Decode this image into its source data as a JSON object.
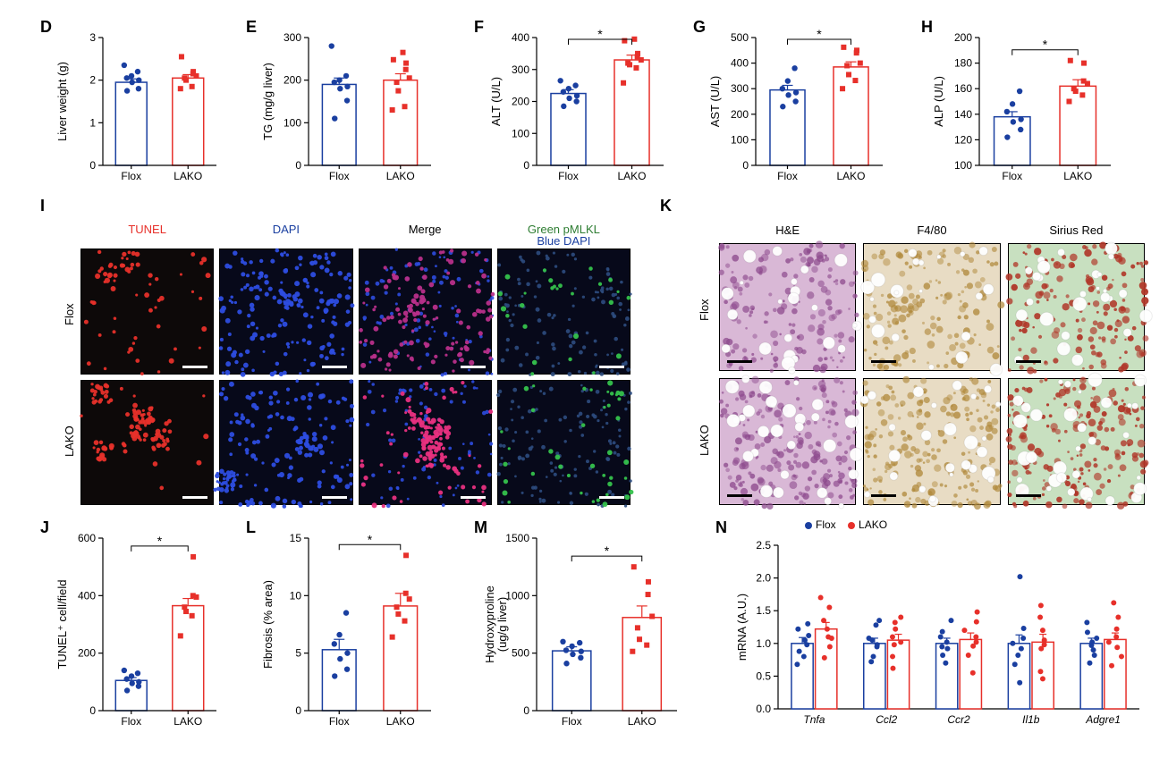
{
  "colors": {
    "flox": "#1a3fa0",
    "lako": "#e7302a",
    "black": "#000000"
  },
  "panels": {
    "D": {
      "label": "D",
      "ylabel": "Liver weight (g)",
      "ymin": 0,
      "ymax": 3,
      "ytick_step": 1,
      "bar_width": 0.55,
      "categories": [
        "Flox",
        "LAKO"
      ],
      "bars": [
        {
          "group": "Flox",
          "mean": 1.95,
          "sem": 0.08,
          "color": "#1a3fa0",
          "shape": "circle",
          "points": [
            1.75,
            1.8,
            1.95,
            2.0,
            2.05,
            2.1,
            2.2,
            2.35
          ]
        },
        {
          "group": "LAKO",
          "mean": 2.05,
          "sem": 0.08,
          "color": "#e7302a",
          "shape": "square",
          "points": [
            1.8,
            1.85,
            2.0,
            2.05,
            2.1,
            2.15,
            2.2,
            2.55
          ]
        }
      ],
      "significant": false
    },
    "E": {
      "label": "E",
      "ylabel": "TG (mg/g liver)",
      "ymin": 0,
      "ymax": 300,
      "ytick_step": 100,
      "bar_width": 0.55,
      "categories": [
        "Flox",
        "LAKO"
      ],
      "bars": [
        {
          "group": "Flox",
          "mean": 190,
          "sem": 15,
          "color": "#1a3fa0",
          "shape": "circle",
          "points": [
            110,
            152,
            180,
            185,
            195,
            200,
            210,
            280
          ]
        },
        {
          "group": "LAKO",
          "mean": 200,
          "sem": 15,
          "color": "#e7302a",
          "shape": "square",
          "points": [
            130,
            138,
            175,
            195,
            205,
            225,
            240,
            248,
            265
          ]
        }
      ],
      "significant": false
    },
    "F": {
      "label": "F",
      "ylabel": "ALT (U/L)",
      "ymin": 0,
      "ymax": 400,
      "ytick_step": 100,
      "bar_width": 0.55,
      "categories": [
        "Flox",
        "LAKO"
      ],
      "bars": [
        {
          "group": "Flox",
          "mean": 225,
          "sem": 12,
          "color": "#1a3fa0",
          "shape": "circle",
          "points": [
            185,
            200,
            210,
            218,
            230,
            240,
            250,
            265
          ]
        },
        {
          "group": "LAKO",
          "mean": 330,
          "sem": 15,
          "color": "#e7302a",
          "shape": "square",
          "points": [
            258,
            305,
            315,
            320,
            330,
            340,
            350,
            390,
            395
          ]
        }
      ],
      "significant": true
    },
    "G": {
      "label": "G",
      "ylabel": "AST (U/L)",
      "ymin": 0,
      "ymax": 500,
      "ytick_step": 100,
      "bar_width": 0.55,
      "categories": [
        "Flox",
        "LAKO"
      ],
      "bars": [
        {
          "group": "Flox",
          "mean": 295,
          "sem": 18,
          "color": "#1a3fa0",
          "shape": "circle",
          "points": [
            230,
            250,
            275,
            285,
            300,
            330,
            380
          ]
        },
        {
          "group": "LAKO",
          "mean": 385,
          "sem": 20,
          "color": "#e7302a",
          "shape": "square",
          "points": [
            300,
            332,
            355,
            390,
            400,
            440,
            450,
            462
          ]
        }
      ],
      "significant": true
    },
    "H": {
      "label": "H",
      "ylabel": "ALP (U/L)",
      "ymin": 100,
      "ymax": 200,
      "ytick_step": 20,
      "bar_width": 0.55,
      "categories": [
        "Flox",
        "LAKO"
      ],
      "bars": [
        {
          "group": "Flox",
          "mean": 138,
          "sem": 4,
          "color": "#1a3fa0",
          "shape": "circle",
          "points": [
            122,
            128,
            134,
            136,
            142,
            148,
            158
          ]
        },
        {
          "group": "LAKO",
          "mean": 162,
          "sem": 5,
          "color": "#e7302a",
          "shape": "square",
          "points": [
            150,
            155,
            158,
            160,
            164,
            166,
            180,
            182
          ]
        }
      ],
      "significant": true
    },
    "J": {
      "label": "J",
      "ylabel": "TUNEL⁺ cell/field",
      "ymin": 0,
      "ymax": 600,
      "ytick_step": 200,
      "bar_width": 0.55,
      "categories": [
        "Flox",
        "LAKO"
      ],
      "bars": [
        {
          "group": "Flox",
          "mean": 105,
          "sem": 10,
          "color": "#1a3fa0",
          "shape": "circle",
          "points": [
            70,
            85,
            95,
            100,
            110,
            120,
            130,
            140
          ]
        },
        {
          "group": "LAKO",
          "mean": 365,
          "sem": 25,
          "color": "#e7302a",
          "shape": "square",
          "points": [
            260,
            330,
            345,
            360,
            395,
            400,
            535
          ]
        }
      ],
      "significant": true
    },
    "L": {
      "label": "L",
      "ylabel": "Fibrosis (% area)",
      "ymin": 0,
      "ymax": 15,
      "ytick_step": 5,
      "bar_width": 0.55,
      "categories": [
        "Flox",
        "LAKO"
      ],
      "bars": [
        {
          "group": "Flox",
          "mean": 5.3,
          "sem": 0.9,
          "color": "#1a3fa0",
          "shape": "circle",
          "points": [
            3.0,
            3.6,
            4.5,
            5.0,
            5.8,
            6.6,
            8.5
          ]
        },
        {
          "group": "LAKO",
          "mean": 9.1,
          "sem": 1.1,
          "color": "#e7302a",
          "shape": "square",
          "points": [
            6.4,
            7.8,
            8.4,
            9.0,
            9.7,
            10.2,
            13.5
          ]
        }
      ],
      "significant": true
    },
    "M": {
      "label": "M",
      "ylabel": "Hydroxyproline\n(ug/g liver)",
      "ymin": 0,
      "ymax": 1500,
      "ytick_step": 500,
      "bar_width": 0.55,
      "categories": [
        "Flox",
        "LAKO"
      ],
      "bars": [
        {
          "group": "Flox",
          "mean": 520,
          "sem": 35,
          "color": "#1a3fa0",
          "shape": "circle",
          "points": [
            410,
            460,
            490,
            515,
            525,
            560,
            590,
            600
          ]
        },
        {
          "group": "LAKO",
          "mean": 810,
          "sem": 100,
          "color": "#e7302a",
          "shape": "square",
          "points": [
            515,
            570,
            620,
            720,
            820,
            1010,
            1120,
            1250
          ]
        }
      ],
      "significant": true
    },
    "N": {
      "label": "N",
      "ylabel": "mRNA (A.U.)",
      "ymin": 0,
      "ymax": 2.5,
      "ytick_step": 0.5,
      "genes": [
        "Tnfa",
        "Ccl2",
        "Ccr2",
        "Il1b",
        "Adgre1"
      ],
      "series": [
        {
          "name": "Flox",
          "color": "#1a3fa0",
          "shape": "circle"
        },
        {
          "name": "LAKO",
          "color": "#e7302a",
          "shape": "circle"
        }
      ],
      "data": {
        "Tnfa": {
          "Flox": {
            "mean": 1.0,
            "sem": 0.09,
            "points": [
              0.68,
              0.8,
              0.88,
              0.98,
              1.05,
              1.12,
              1.22,
              1.3
            ]
          },
          "LAKO": {
            "mean": 1.22,
            "sem": 0.1,
            "points": [
              0.78,
              0.95,
              1.08,
              1.1,
              1.22,
              1.35,
              1.55,
              1.7
            ]
          }
        },
        "Ccl2": {
          "Flox": {
            "mean": 1.0,
            "sem": 0.08,
            "points": [
              0.72,
              0.8,
              0.95,
              0.98,
              1.05,
              1.08,
              1.28,
              1.35
            ]
          },
          "LAKO": {
            "mean": 1.05,
            "sem": 0.09,
            "points": [
              0.62,
              0.8,
              0.98,
              1.02,
              1.1,
              1.22,
              1.32,
              1.4
            ]
          }
        },
        "Ccr2": {
          "Flox": {
            "mean": 1.0,
            "sem": 0.08,
            "points": [
              0.7,
              0.82,
              0.92,
              0.95,
              1.02,
              1.1,
              1.18,
              1.35
            ]
          },
          "LAKO": {
            "mean": 1.06,
            "sem": 0.1,
            "points": [
              0.55,
              0.82,
              0.96,
              1.02,
              1.1,
              1.2,
              1.33,
              1.48
            ]
          }
        },
        "Il1b": {
          "Flox": {
            "mean": 1.0,
            "sem": 0.13,
            "points": [
              0.4,
              0.68,
              0.82,
              0.92,
              1.0,
              1.08,
              1.23,
              2.02
            ]
          },
          "LAKO": {
            "mean": 1.02,
            "sem": 0.12,
            "points": [
              0.46,
              0.57,
              0.92,
              0.98,
              1.05,
              1.2,
              1.4,
              1.58
            ]
          }
        },
        "Adgre1": {
          "Flox": {
            "mean": 1.0,
            "sem": 0.08,
            "points": [
              0.7,
              0.82,
              0.9,
              0.97,
              1.02,
              1.08,
              1.17,
              1.32
            ]
          },
          "LAKO": {
            "mean": 1.06,
            "sem": 0.1,
            "points": [
              0.66,
              0.8,
              0.94,
              1.02,
              1.1,
              1.22,
              1.4,
              1.62
            ]
          }
        }
      },
      "legend": [
        {
          "label": "Flox",
          "color": "#1a3fa0"
        },
        {
          "label": "LAKO",
          "color": "#e7302a"
        }
      ]
    }
  },
  "micro_I": {
    "label": "I",
    "col_labels": [
      {
        "text": "TUNEL",
        "color": "#e7302a"
      },
      {
        "text": "DAPI",
        "color": "#1a3fa0"
      },
      {
        "text": "Merge",
        "color": "#000000"
      },
      {
        "text": "Green pMLKL\nBlue DAPI",
        "color_top": "#2e7d32",
        "color_bottom": "#1a3fa0"
      }
    ],
    "row_labels": [
      "Flox",
      "LAKO"
    ],
    "cells": [
      [
        {
          "bg": "#0d0909",
          "fg": "#e7302a",
          "density": 0.25,
          "cluster": 0.15
        },
        {
          "bg": "#07091a",
          "fg": "#2d4de0",
          "density": 0.7,
          "cluster": 0.1
        },
        {
          "bg": "#07091a",
          "fg": "#b82f8a",
          "density": 0.5,
          "cluster": 0.1,
          "second_fg": "#2d4de0",
          "second_density": 0.35
        },
        {
          "bg": "#07091a",
          "fg": "#35c24c",
          "density": 0.1,
          "cluster": 0.05,
          "second_fg": "#2d4d80",
          "second_density": 0.45
        }
      ],
      [
        {
          "bg": "#0d0909",
          "fg": "#e7302a",
          "density": 0.45,
          "cluster": 0.4
        },
        {
          "bg": "#07091a",
          "fg": "#2d4de0",
          "density": 0.7,
          "cluster": 0.1
        },
        {
          "bg": "#07091a",
          "fg": "#e8307f",
          "density": 0.55,
          "cluster": 0.3,
          "second_fg": "#2d4de0",
          "second_density": 0.3
        },
        {
          "bg": "#07091a",
          "fg": "#35c24c",
          "density": 0.16,
          "cluster": 0.1,
          "second_fg": "#2d4d80",
          "second_density": 0.45
        }
      ]
    ]
  },
  "micro_K": {
    "label": "K",
    "col_labels": [
      "H&E",
      "F4/80",
      "Sirius Red"
    ],
    "row_labels": [
      "Flox",
      "LAKO"
    ],
    "styles": [
      {
        "bg": "#d9b8d6",
        "fg": "#8e4b8e",
        "holes": 0.2,
        "type": "he"
      },
      {
        "bg": "#e8dcc4",
        "fg": "#b18a3d",
        "holes": 0.18,
        "type": "dab"
      },
      {
        "bg": "#c8e0c0",
        "fg": "#b03628",
        "holes": 0.22,
        "type": "sr"
      }
    ],
    "lako_intensity_boost": 1.25
  }
}
